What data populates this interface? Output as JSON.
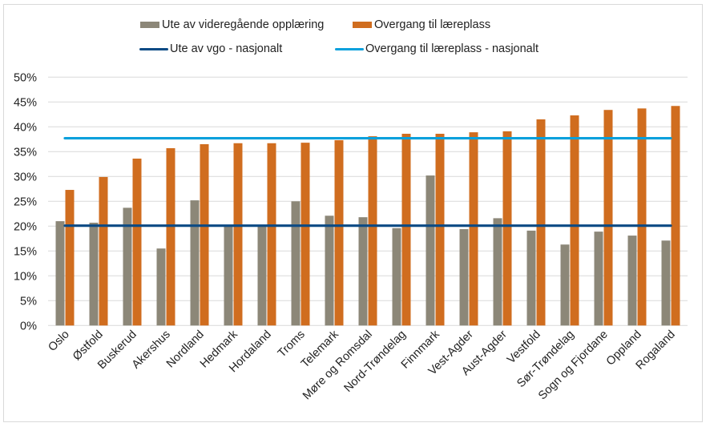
{
  "chart_data": {
    "type": "bar",
    "title": "",
    "xlabel": "",
    "ylabel": "",
    "ylim": [
      0,
      0.5
    ],
    "yticks": [
      0,
      0.05,
      0.1,
      0.15,
      0.2,
      0.25,
      0.3,
      0.35,
      0.4,
      0.45,
      0.5
    ],
    "ytick_labels": [
      "0%",
      "5%",
      "10%",
      "15%",
      "20%",
      "25%",
      "30%",
      "35%",
      "40%",
      "45%",
      "50%"
    ],
    "grid": true,
    "legend_position": "top",
    "categories": [
      "Oslo",
      "Østfold",
      "Buskerud",
      "Akershus",
      "Nordland",
      "Hedmark",
      "Hordaland",
      "Troms",
      "Telemark",
      "Møre og Romsdal",
      "Nord-Trøndelag",
      "Finnmark",
      "Vest-Agder",
      "Aust-Agder",
      "Vestfold",
      "Sør-Trøndelag",
      "Sogn og Fjordane",
      "Oppland",
      "Rogaland"
    ],
    "series": [
      {
        "name": "Ute av videregående opplæring",
        "kind": "bar",
        "color": "#8C8778",
        "values": [
          0.21,
          0.207,
          0.237,
          0.155,
          0.252,
          0.201,
          0.202,
          0.25,
          0.221,
          0.218,
          0.196,
          0.302,
          0.194,
          0.216,
          0.191,
          0.163,
          0.189,
          0.181,
          0.171
        ]
      },
      {
        "name": "Overgang til læreplass",
        "kind": "bar",
        "color": "#D06D1F",
        "values": [
          0.273,
          0.299,
          0.336,
          0.357,
          0.365,
          0.367,
          0.367,
          0.368,
          0.373,
          0.381,
          0.386,
          0.386,
          0.389,
          0.391,
          0.415,
          0.423,
          0.434,
          0.437,
          0.442
        ]
      },
      {
        "name": "Ute av vgo - nasjonalt",
        "kind": "line",
        "color": "#0B4A84",
        "value": 0.201
      },
      {
        "name": "Overgang til læreplass - nasjonalt",
        "kind": "line",
        "color": "#0AA0DC",
        "value": 0.377
      }
    ]
  },
  "legend": {
    "items": [
      {
        "label": "Ute av videregående opplæring",
        "type": "box",
        "color": "#8C8778"
      },
      {
        "label": "Overgang til læreplass",
        "type": "box",
        "color": "#D06D1F"
      },
      {
        "label": "Ute av vgo - nasjonalt",
        "type": "line",
        "color": "#0B4A84"
      },
      {
        "label": "Overgang til læreplass - nasjonalt",
        "type": "line",
        "color": "#0AA0DC"
      }
    ]
  }
}
